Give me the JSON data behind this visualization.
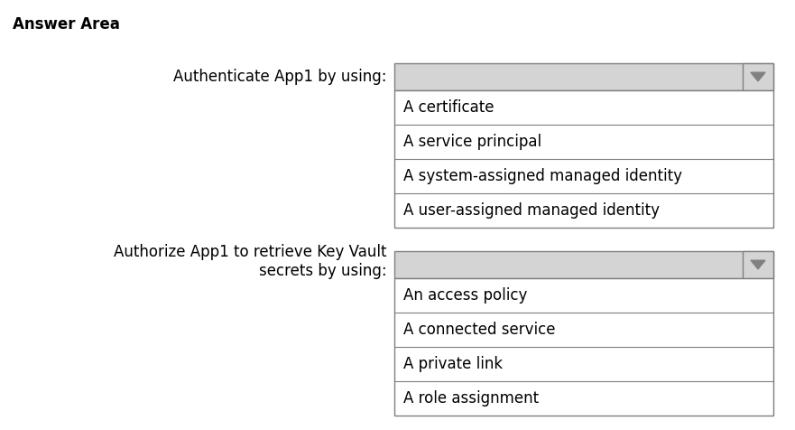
{
  "title": "Answer Area",
  "title_fontsize": 12,
  "title_bold": true,
  "background_color": "#ffffff",
  "dropdown_bg": "#d4d4d4",
  "dropdown_border": "#7f7f7f",
  "list_bg": "#ffffff",
  "list_border": "#7f7f7f",
  "arrow_color": "#808080",
  "text_color": "#000000",
  "label_fontsize": 12,
  "item_fontsize": 12,
  "sections": [
    {
      "label": "Authenticate App1 by using:",
      "items": [
        "A certificate",
        "A service principal",
        "A system-assigned managed identity",
        "A user-assigned managed identity"
      ]
    },
    {
      "label": "Authorize App1 to retrieve Key Vault\nsecrets by using:",
      "items": [
        "An access policy",
        "A connected service",
        "A private link",
        "A role assignment"
      ]
    }
  ],
  "fig_width": 8.81,
  "fig_height": 4.76,
  "dpi": 100
}
